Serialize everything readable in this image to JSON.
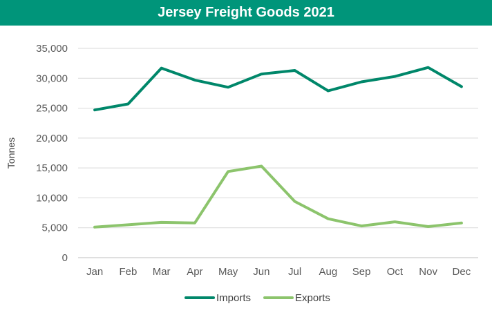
{
  "header": {
    "title": "Jersey Freight Goods 2021"
  },
  "colors": {
    "header_bg": "#00957a",
    "imports": "#00876a",
    "exports": "#8cc46c",
    "grid": "#d9d9d9"
  },
  "chart_data": {
    "type": "line",
    "title": "Jersey Freight Goods 2021",
    "xlabel": "",
    "ylabel": "Tonnes",
    "ylim": [
      0,
      35000
    ],
    "yticks": [
      "0",
      "5,000",
      "10,000",
      "15,000",
      "20,000",
      "25,000",
      "30,000",
      "35,000"
    ],
    "grid": true,
    "legend": "bottom",
    "categories": [
      "Jan",
      "Feb",
      "Mar",
      "Apr",
      "May",
      "Jun",
      "Jul",
      "Aug",
      "Sep",
      "Oct",
      "Nov",
      "Dec"
    ],
    "series": [
      {
        "name": "Imports",
        "values": [
          24700,
          25700,
          31700,
          29700,
          28500,
          30700,
          31300,
          27900,
          29400,
          30300,
          31800,
          28600
        ]
      },
      {
        "name": "Exports",
        "values": [
          5100,
          5500,
          5900,
          5800,
          14400,
          15300,
          9400,
          6500,
          5300,
          6000,
          5200,
          5800
        ]
      }
    ]
  }
}
